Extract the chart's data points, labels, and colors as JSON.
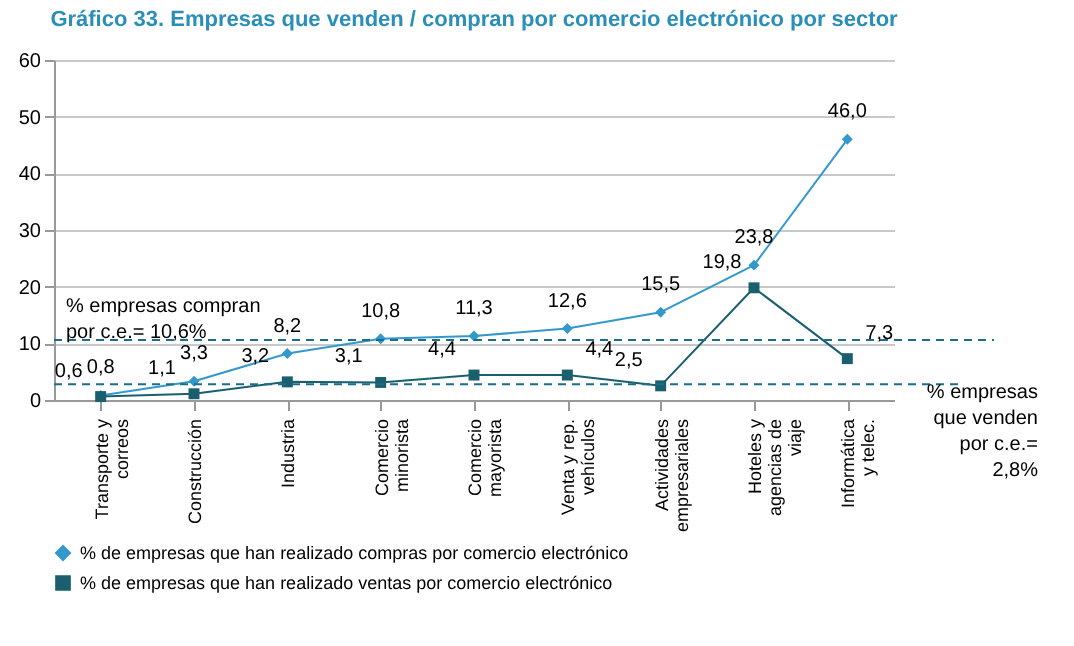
{
  "chart_data": {
    "type": "line",
    "title": "Gráfico 33. Empresas que venden / compran por comercio electrónico por sector",
    "categories": [
      "Transporte y correos",
      "Construcción",
      "Industria",
      "Comercio minorista",
      "Comercio mayorista",
      "Venta y rep. vehículos",
      "Actividades empresariales",
      "Hoteles y agencias de viaje",
      "Informática y telec."
    ],
    "series": [
      {
        "name": "% de empresas que han realizado compras por comercio electrónico",
        "color": "#3399cc",
        "marker": "diamond",
        "values": [
          0.8,
          3.3,
          8.2,
          10.8,
          11.3,
          12.6,
          15.5,
          23.8,
          46.0
        ],
        "value_labels": [
          "0,8",
          "3,3",
          "8,2",
          "10,8",
          "11,3",
          "12,6",
          "15,5",
          "23,8",
          "46,0"
        ]
      },
      {
        "name": "% de empresas que han realizado ventas por comercio electrónico",
        "color": "#1a5f6e",
        "marker": "square",
        "values": [
          0.6,
          1.1,
          3.2,
          3.1,
          4.4,
          4.4,
          2.5,
          19.8,
          7.3
        ],
        "value_labels": [
          "0,6",
          "1,1",
          "3,2",
          "3,1",
          "4,4",
          "4,4",
          "2,5",
          "19,8",
          "7,3"
        ]
      }
    ],
    "ylim": [
      0,
      60
    ],
    "yticks": [
      0,
      10,
      20,
      30,
      40,
      50,
      60
    ],
    "grid": "y",
    "legend": "bottom",
    "ref_lines": [
      {
        "axis": "y",
        "value": 10.6,
        "label": "% empresas compran por c.e.= 10,6%",
        "color": "#1a6e8a",
        "line_style": "dashed"
      },
      {
        "axis": "y",
        "value": 2.8,
        "label": "% empresas que venden por c.e.= 2,8%",
        "color": "#1a6e8a",
        "line_style": "dashed"
      }
    ]
  }
}
